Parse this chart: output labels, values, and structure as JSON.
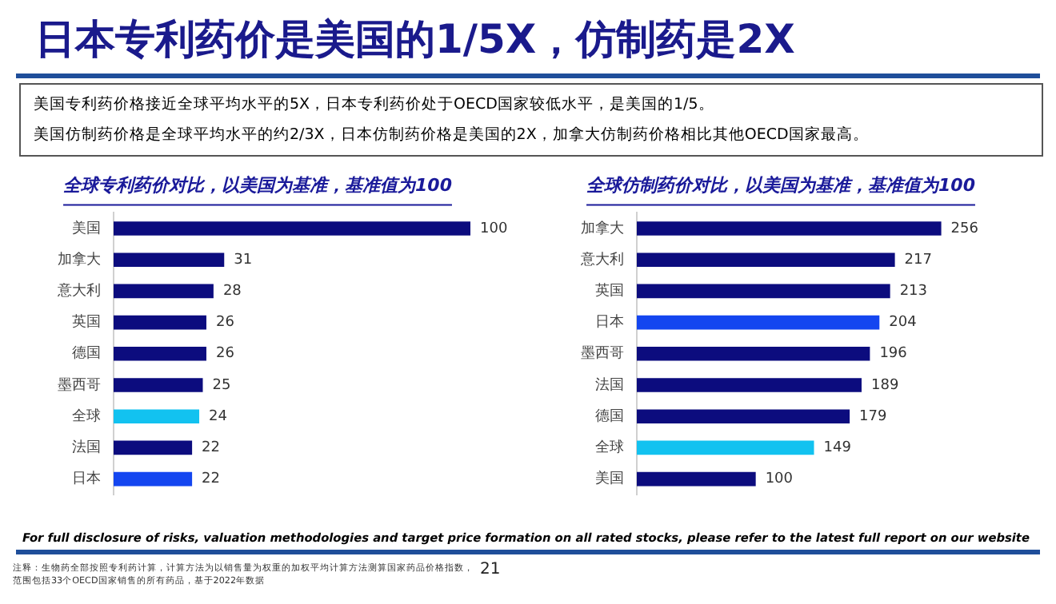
{
  "chart_data": [
    {
      "type": "other",
      "title": "日本专利药价是美国的1/5X，仿制药是2X",
      "annotations": [
        "美国专利药价格接近全球平均水平的5X，日本专利药价处于OECD国家较低水平，是美国的1/5。",
        "美国仿制药价格是全球平均水平的约2/3X，日本仿制药价格是美国的2X，加拿大仿制药价格相比其他OECD国家最高。",
        "For full disclosure of risks, valuation methodologies and target price formation on all rated stocks, please refer to the latest full report on our website",
        "注释：生物药全部按照专利药计算，计算方法为以销售量为权重的加权平均计算方法测算国家药品价格指数，范围包括33个OECD国家销售的所有药品，基于2022年数据",
        "21"
      ]
    },
    {
      "type": "bar",
      "orientation": "horizontal",
      "title": "全球专利药价对比，以美国为基准，基准值为100",
      "categories": [
        "美国",
        "加拿大",
        "意大利",
        "英国",
        "德国",
        "墨西哥",
        "全球",
        "法国",
        "日本"
      ],
      "values": [
        100,
        31,
        28,
        26,
        26,
        25,
        24,
        22,
        22
      ],
      "colors": [
        "#0c0c7e",
        "#0c0c7e",
        "#0c0c7e",
        "#0c0c7e",
        "#0c0c7e",
        "#0c0c7e",
        "#12c2f0",
        "#0c0c7e",
        "#1446f0"
      ],
      "data_labels": true,
      "grid": false,
      "legend": false,
      "tick_labels": "y"
    },
    {
      "type": "bar",
      "orientation": "horizontal",
      "title": "全球仿制药价对比，以美国为基准，基准值为100",
      "categories": [
        "加拿大",
        "意大利",
        "英国",
        "日本",
        "墨西哥",
        "法国",
        "德国",
        "全球",
        "美国"
      ],
      "values": [
        256,
        217,
        213,
        204,
        196,
        189,
        179,
        149,
        100
      ],
      "colors": [
        "#0c0c7e",
        "#0c0c7e",
        "#0c0c7e",
        "#1446f0",
        "#0c0c7e",
        "#0c0c7e",
        "#0c0c7e",
        "#12c2f0",
        "#0c0c7e"
      ],
      "data_labels": true,
      "grid": false,
      "legend": false,
      "tick_labels": "y"
    }
  ]
}
